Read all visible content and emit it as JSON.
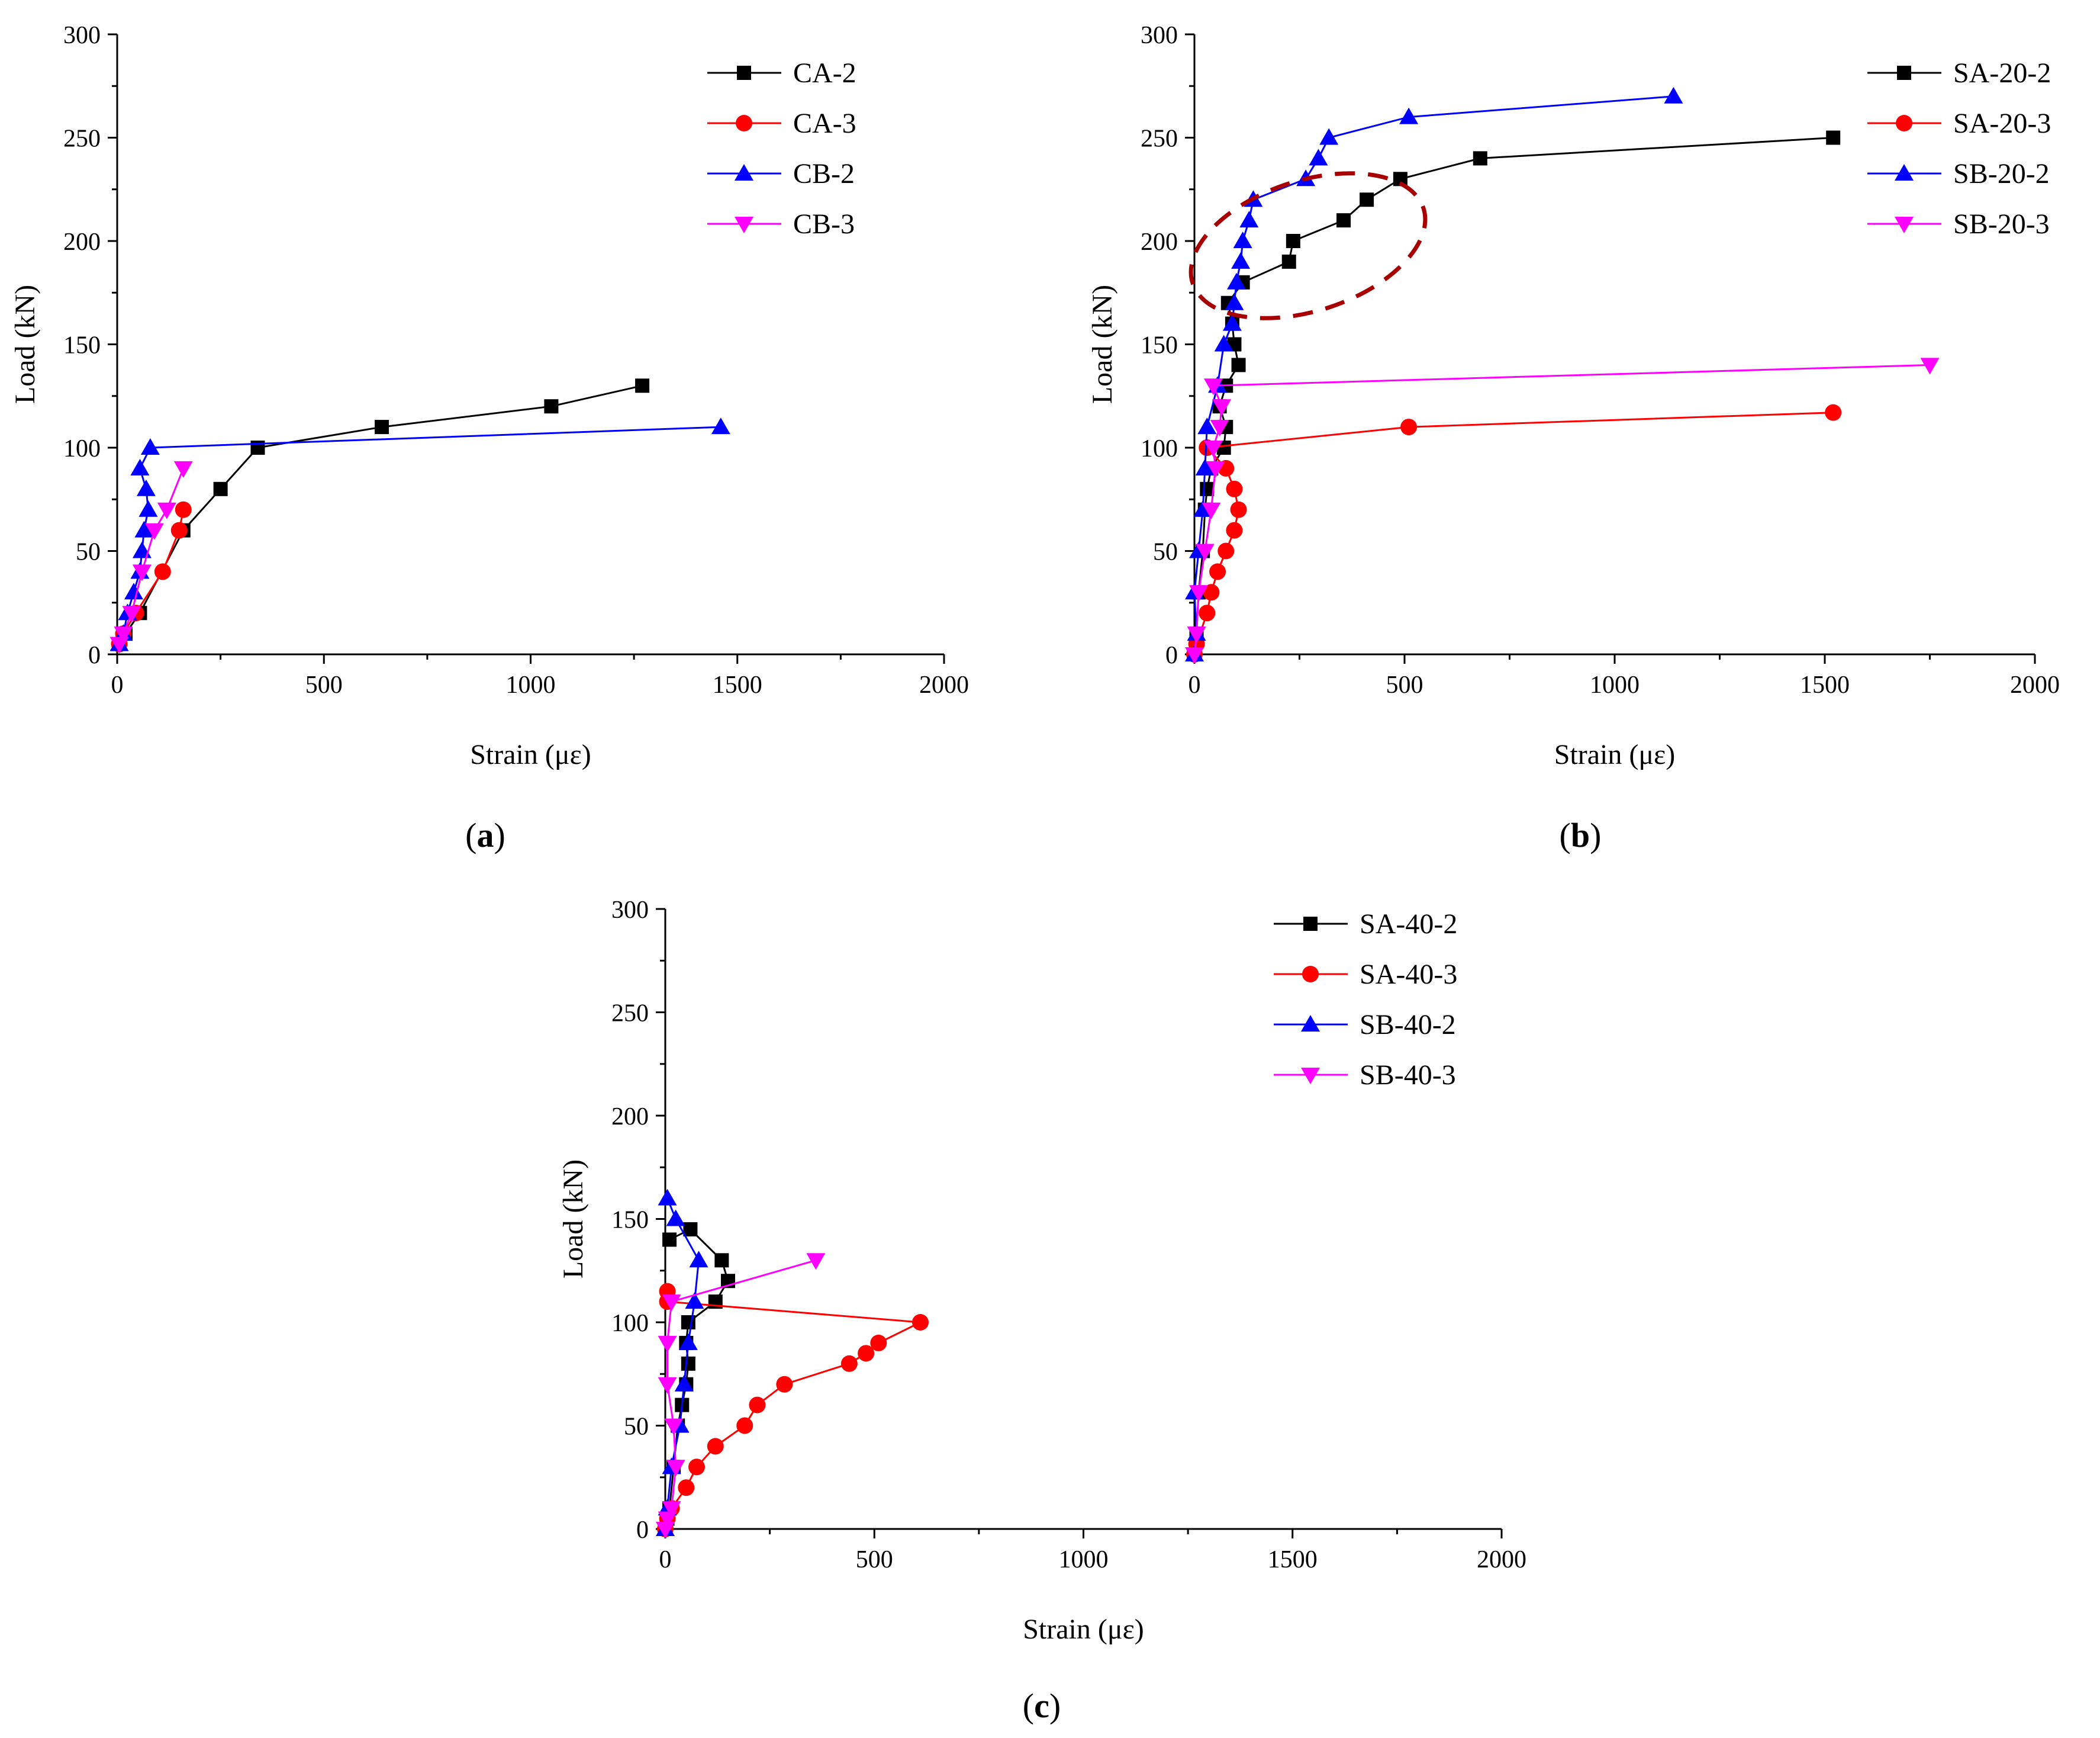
{
  "chart_data": [
    {
      "type": "line",
      "panel_label": "a",
      "xlabel": "Strain (με)",
      "ylabel": "Load (kN)",
      "xlim": [
        0,
        2000
      ],
      "ylim": [
        0,
        300
      ],
      "xticks": [
        0,
        500,
        1000,
        1500,
        2000
      ],
      "yticks": [
        0,
        50,
        100,
        150,
        200,
        250,
        300
      ],
      "legend_position": "top-right",
      "series": [
        {
          "name": "CA-2",
          "color": "#000000",
          "marker": "square",
          "points": [
            [
              5,
              5
            ],
            [
              20,
              10
            ],
            [
              55,
              20
            ],
            [
              160,
              60
            ],
            [
              250,
              80
            ],
            [
              340,
              100
            ],
            [
              640,
              110
            ],
            [
              1050,
              120
            ],
            [
              1270,
              130
            ]
          ]
        },
        {
          "name": "CA-3",
          "color": "#ff0000",
          "marker": "circle",
          "points": [
            [
              5,
              5
            ],
            [
              15,
              10
            ],
            [
              45,
              20
            ],
            [
              110,
              40
            ],
            [
              150,
              60
            ],
            [
              160,
              70
            ]
          ]
        },
        {
          "name": "CB-2",
          "color": "#0000ff",
          "marker": "triangle-up",
          "points": [
            [
              5,
              5
            ],
            [
              15,
              10
            ],
            [
              25,
              20
            ],
            [
              40,
              30
            ],
            [
              55,
              40
            ],
            [
              60,
              50
            ],
            [
              65,
              60
            ],
            [
              75,
              70
            ],
            [
              70,
              80
            ],
            [
              55,
              90
            ],
            [
              80,
              100
            ],
            [
              1460,
              110
            ]
          ]
        },
        {
          "name": "CB-3",
          "color": "#ff00ff",
          "marker": "triangle-down",
          "points": [
            [
              5,
              5
            ],
            [
              15,
              10
            ],
            [
              35,
              20
            ],
            [
              60,
              40
            ],
            [
              90,
              60
            ],
            [
              120,
              70
            ],
            [
              160,
              90
            ]
          ]
        }
      ]
    },
    {
      "type": "line",
      "panel_label": "b",
      "xlabel": "Strain (με)",
      "ylabel": "Load (kN)",
      "xlim": [
        0,
        2000
      ],
      "ylim": [
        0,
        300
      ],
      "xticks": [
        0,
        500,
        1000,
        1500,
        2000
      ],
      "yticks": [
        0,
        50,
        100,
        150,
        200,
        250,
        300
      ],
      "legend_position": "top-right",
      "series": [
        {
          "name": "SA-20-2",
          "color": "#000000",
          "marker": "square",
          "points": [
            [
              0,
              0
            ],
            [
              5,
              10
            ],
            [
              10,
              30
            ],
            [
              20,
              50
            ],
            [
              25,
              70
            ],
            [
              30,
              80
            ],
            [
              40,
              90
            ],
            [
              70,
              100
            ],
            [
              75,
              110
            ],
            [
              60,
              120
            ],
            [
              75,
              130
            ],
            [
              105,
              140
            ],
            [
              95,
              150
            ],
            [
              90,
              160
            ],
            [
              80,
              170
            ],
            [
              115,
              180
            ],
            [
              225,
              190
            ],
            [
              235,
              200
            ],
            [
              355,
              210
            ],
            [
              410,
              220
            ],
            [
              490,
              230
            ],
            [
              680,
              240
            ],
            [
              1520,
              250
            ]
          ]
        },
        {
          "name": "SA-20-3",
          "color": "#ff0000",
          "marker": "circle",
          "points": [
            [
              0,
              0
            ],
            [
              5,
              5
            ],
            [
              30,
              20
            ],
            [
              40,
              30
            ],
            [
              55,
              40
            ],
            [
              75,
              50
            ],
            [
              95,
              60
            ],
            [
              105,
              70
            ],
            [
              95,
              80
            ],
            [
              75,
              90
            ],
            [
              30,
              100
            ],
            [
              510,
              110
            ],
            [
              1520,
              117
            ]
          ]
        },
        {
          "name": "SB-20-2",
          "color": "#0000ff",
          "marker": "triangle-up",
          "points": [
            [
              0,
              0
            ],
            [
              5,
              10
            ],
            [
              0,
              30
            ],
            [
              10,
              50
            ],
            [
              20,
              70
            ],
            [
              25,
              90
            ],
            [
              30,
              110
            ],
            [
              55,
              130
            ],
            [
              70,
              150
            ],
            [
              90,
              160
            ],
            [
              95,
              170
            ],
            [
              100,
              180
            ],
            [
              110,
              190
            ],
            [
              115,
              200
            ],
            [
              130,
              210
            ],
            [
              140,
              220
            ],
            [
              265,
              230
            ],
            [
              295,
              240
            ],
            [
              320,
              250
            ],
            [
              510,
              260
            ],
            [
              1140,
              270
            ]
          ]
        },
        {
          "name": "SB-20-3",
          "color": "#ff00ff",
          "marker": "triangle-down",
          "points": [
            [
              0,
              0
            ],
            [
              5,
              10
            ],
            [
              10,
              30
            ],
            [
              25,
              50
            ],
            [
              40,
              70
            ],
            [
              50,
              90
            ],
            [
              45,
              100
            ],
            [
              60,
              110
            ],
            [
              65,
              120
            ],
            [
              45,
              130
            ],
            [
              1750,
              140
            ]
          ]
        }
      ]
    },
    {
      "type": "line",
      "panel_label": "c",
      "xlabel": "Strain (με)",
      "ylabel": "Load (kN)",
      "xlim": [
        0,
        2000
      ],
      "ylim": [
        0,
        300
      ],
      "xticks": [
        0,
        500,
        1000,
        1500,
        2000
      ],
      "yticks": [
        0,
        50,
        100,
        150,
        200,
        250,
        300
      ],
      "legend_position": "top-right",
      "series": [
        {
          "name": "SA-40-2",
          "color": "#000000",
          "marker": "square",
          "points": [
            [
              0,
              0
            ],
            [
              5,
              5
            ],
            [
              10,
              10
            ],
            [
              20,
              30
            ],
            [
              30,
              50
            ],
            [
              40,
              60
            ],
            [
              50,
              70
            ],
            [
              55,
              80
            ],
            [
              50,
              90
            ],
            [
              55,
              100
            ],
            [
              120,
              110
            ],
            [
              150,
              120
            ],
            [
              135,
              130
            ],
            [
              60,
              145
            ],
            [
              10,
              140
            ]
          ]
        },
        {
          "name": "SA-40-3",
          "color": "#ff0000",
          "marker": "circle",
          "points": [
            [
              0,
              0
            ],
            [
              5,
              5
            ],
            [
              15,
              10
            ],
            [
              50,
              20
            ],
            [
              75,
              30
            ],
            [
              120,
              40
            ],
            [
              190,
              50
            ],
            [
              220,
              60
            ],
            [
              285,
              70
            ],
            [
              440,
              80
            ],
            [
              480,
              85
            ],
            [
              510,
              90
            ],
            [
              610,
              100
            ],
            [
              5,
              110
            ],
            [
              5,
              115
            ]
          ]
        },
        {
          "name": "SB-40-2",
          "color": "#0000ff",
          "marker": "triangle-up",
          "points": [
            [
              0,
              0
            ],
            [
              5,
              10
            ],
            [
              15,
              30
            ],
            [
              35,
              50
            ],
            [
              45,
              70
            ],
            [
              55,
              90
            ],
            [
              70,
              110
            ],
            [
              80,
              130
            ],
            [
              25,
              150
            ],
            [
              5,
              160
            ]
          ]
        },
        {
          "name": "SB-40-3",
          "color": "#ff00ff",
          "marker": "triangle-down",
          "points": [
            [
              0,
              0
            ],
            [
              5,
              5
            ],
            [
              15,
              10
            ],
            [
              25,
              30
            ],
            [
              20,
              50
            ],
            [
              5,
              70
            ],
            [
              5,
              90
            ],
            [
              15,
              110
            ],
            [
              360,
              130
            ]
          ]
        }
      ]
    }
  ]
}
